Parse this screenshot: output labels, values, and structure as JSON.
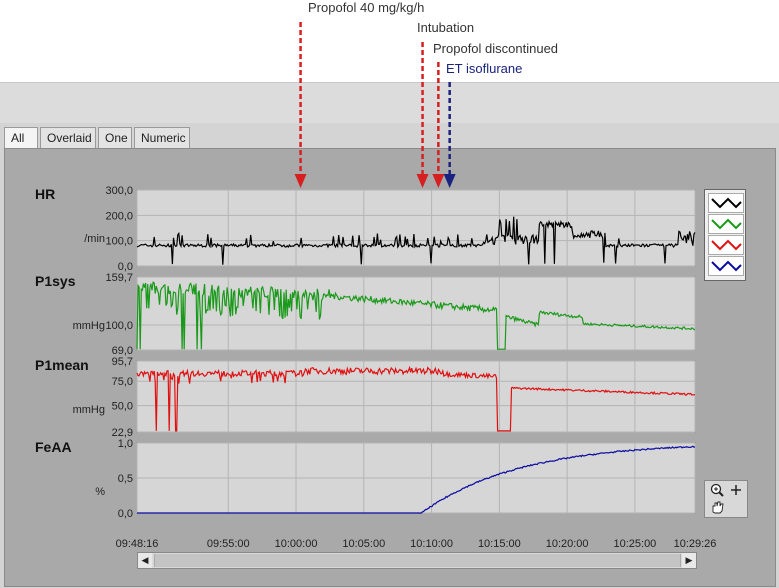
{
  "annotations": [
    {
      "label": "Propofol 40 mg/kg/h",
      "time": "10:00:20",
      "color": "#d62020"
    },
    {
      "label": "Intubation",
      "time": "10:09:20",
      "color": "#d62020"
    },
    {
      "label": "Propofol discontinued",
      "time": "10:10:30",
      "color": "#d62020"
    },
    {
      "label": "ET isoflurane",
      "time": "10:11:20",
      "color": "#1a237e"
    }
  ],
  "tabs": [
    {
      "label": "All",
      "active": true
    },
    {
      "label": "Overlaid",
      "active": false
    },
    {
      "label": "One",
      "active": false
    },
    {
      "label": "Numeric",
      "active": false
    }
  ],
  "chart_data": [
    {
      "type": "line",
      "title": "HR",
      "ylabel": "/min",
      "yticks": [
        "0,0",
        "100,0",
        "200,0",
        "300,0"
      ],
      "ylim": [
        0,
        300
      ],
      "color": "#000000",
      "grid": true
    },
    {
      "type": "line",
      "title": "P1sys",
      "ylabel": "mmHg",
      "yticks": [
        "69,0",
        "100,0",
        "159,7"
      ],
      "ylim": [
        69,
        159.7
      ],
      "color": "#1a9a1a",
      "grid": true
    },
    {
      "type": "line",
      "title": "P1mean",
      "ylabel": "mmHg",
      "yticks": [
        "22,9",
        "50,0",
        "75,0",
        "95,7"
      ],
      "ylim": [
        22.9,
        95.7
      ],
      "color": "#e01010",
      "grid": true
    },
    {
      "type": "line",
      "title": "FeAA",
      "ylabel": "%",
      "yticks": [
        "0,0",
        "0,5",
        "1,0"
      ],
      "ylim": [
        0,
        1.0
      ],
      "color": "#0a0aa0",
      "grid": true
    }
  ],
  "xaxis": {
    "start": "09:48:16",
    "end": "10:29:26",
    "ticks": [
      "09:48:16",
      "09:55:00",
      "10:00:00",
      "10:05:00",
      "10:10:00",
      "10:15:00",
      "10:20:00",
      "10:25:00",
      "10:29:26"
    ]
  },
  "legend": {
    "items": [
      {
        "color": "#000000"
      },
      {
        "color": "#1a9a1a"
      },
      {
        "color": "#e01010"
      },
      {
        "color": "#0a0aa0"
      }
    ]
  },
  "tools": {
    "zoom_icon": "zoom-icon",
    "add_icon": "plus-icon",
    "pan_icon": "hand-icon"
  },
  "scroll": {
    "left_arrow": "◀",
    "right_arrow": "▶"
  }
}
